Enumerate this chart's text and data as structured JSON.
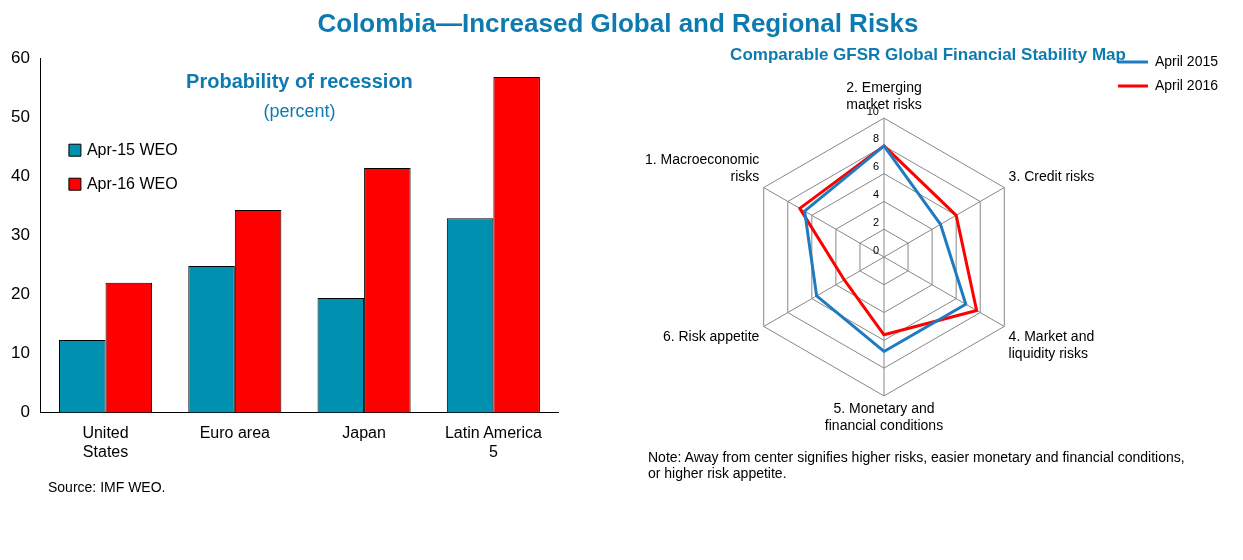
{
  "chart_data": [
    {
      "type": "bar",
      "title": "Colombia—Increased Global and Regional Risks",
      "subtitle": "Probability of recession",
      "ylabel": "(percent)",
      "categories": [
        "United States",
        "Euro area",
        "Japan",
        "Latin America 5"
      ],
      "series": [
        {
          "name": "Apr-15 WEO",
          "color": "#0090b0",
          "values": [
            12.3,
            24.8,
            19.4,
            32.9
          ]
        },
        {
          "name": "Apr-16 WEO",
          "color": "#ff0000",
          "values": [
            22.0,
            34.3,
            41.4,
            56.8
          ]
        }
      ],
      "ylim": [
        0,
        60
      ],
      "yticks": [
        0,
        10,
        20,
        30,
        40,
        50,
        60
      ],
      "grid": false,
      "legend": "top left",
      "annotations": [
        "Source: IMF WEO."
      ]
    },
    {
      "type": "radar",
      "title": "Comparable GFSR Global Financial Stability Map",
      "categories": [
        "2. Emerging market risks",
        "3. Credit risks",
        "4. Market and liquidity risks",
        "5. Monetary and financial conditions",
        "6. Risk appetite",
        "1. Macroeconomic risks"
      ],
      "series": [
        {
          "name": "April 2015",
          "color": "#1f7bc0",
          "values": [
            8,
            4.7,
            6.8,
            6.8,
            5.6,
            6.6
          ]
        },
        {
          "name": "April 2016",
          "color": "#ff0000",
          "values": [
            8,
            6.0,
            7.7,
            5.6,
            3.3,
            7.0
          ]
        }
      ],
      "ylim": [
        0,
        10
      ],
      "yticks": [
        0,
        2,
        4,
        6,
        8,
        10
      ],
      "grid": true,
      "legend": "top right",
      "marker": "none",
      "annotations": [
        "Note: Away from center signifies higher risks, easier monetary and financial conditions, or higher risk appetite."
      ]
    }
  ]
}
